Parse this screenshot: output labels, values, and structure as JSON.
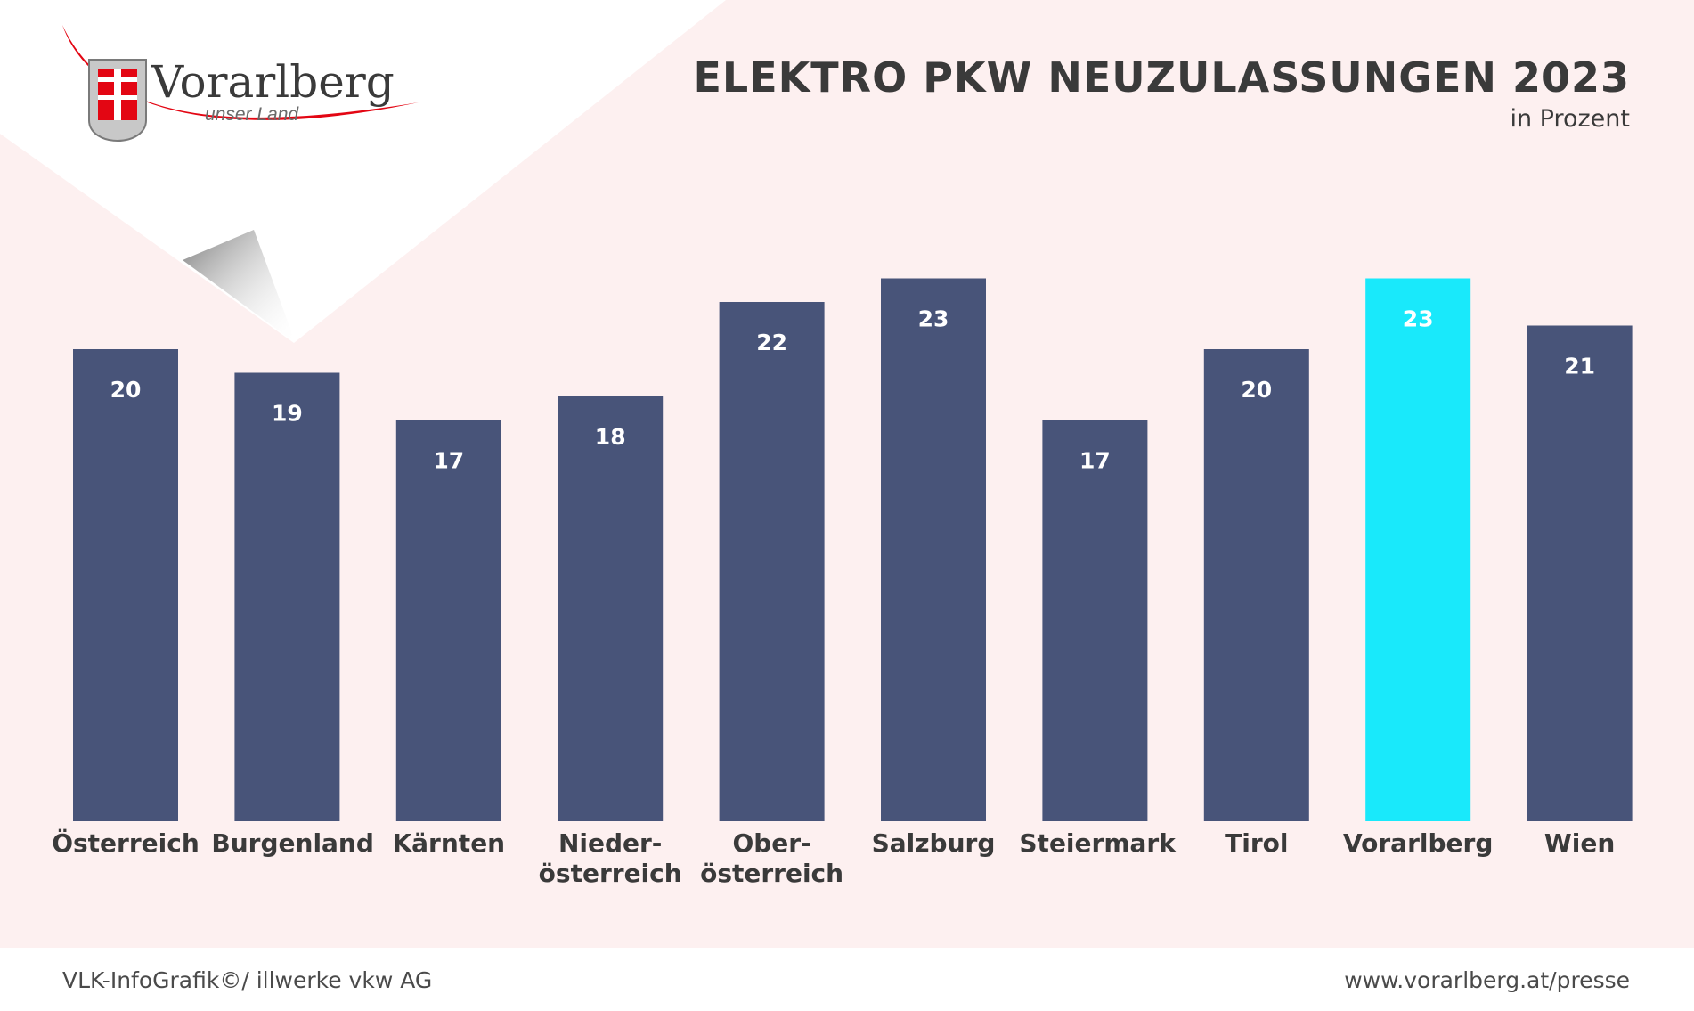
{
  "header": {
    "logo_text": "Vorarlberg",
    "logo_subtext": "unser Land"
  },
  "chart_data": {
    "type": "bar",
    "title": "ELEKTRO PKW NEUZULASSUNGEN 2023",
    "subtitle": "in Prozent",
    "xlabel": "",
    "ylabel": "",
    "grid": false,
    "categories": [
      "Österreich",
      "Burgenland",
      "Kärnten",
      "Nieder-\nösterreich",
      "Ober-\nösterreich",
      "Salzburg",
      "Steiermark",
      "Tirol",
      "Vorarlberg",
      "Wien"
    ],
    "values": [
      20,
      19,
      17,
      18,
      22,
      23,
      17,
      20,
      23,
      21
    ],
    "data_labels": [
      "20",
      "19",
      "17",
      "18",
      "22",
      "23",
      "17",
      "20",
      "23",
      "21"
    ],
    "highlight_index": 8,
    "colors": {
      "bar": "#485479",
      "highlight": "#19e9fb",
      "label": "#ffffff"
    }
  },
  "footer": {
    "credit": "VLK-InfoGrafik©/ illwerke vkw AG",
    "url": "www.vorarlberg.at/presse"
  },
  "colors": {
    "background_tint": "#fdf0f0",
    "logo_red": "#e30613"
  }
}
